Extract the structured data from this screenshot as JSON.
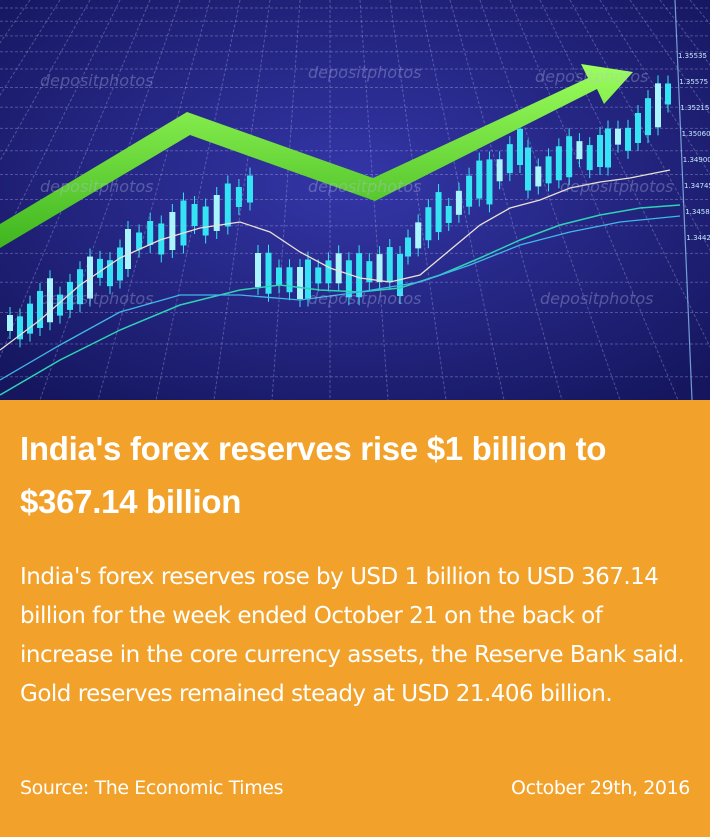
{
  "image": {
    "watermark": "depositphotos",
    "scale_labels": [
      "1.35535",
      "1.35575",
      "1.35215",
      "1.35060",
      "1.34900",
      "1.34745",
      "1.34585",
      "1.34425"
    ]
  },
  "article": {
    "headline": "India's forex reserves rise $1 billion to $367.14 billion",
    "body": "India's forex reserves rose by USD 1 billion to USD 367.14 billion for the week ended October 21 on the back of increase in the core currency assets, the Reserve Bank said. Gold reserves remained steady at USD 21.406 billion."
  },
  "footer": {
    "source": "Source: The Economic Times",
    "date": "October 29th, 2016"
  },
  "colors": {
    "background": "#f2a22a",
    "hero_bg": "#23247e",
    "arrow": "#6fe43a",
    "candles": "#36e3f5",
    "text": "#ffffff"
  }
}
